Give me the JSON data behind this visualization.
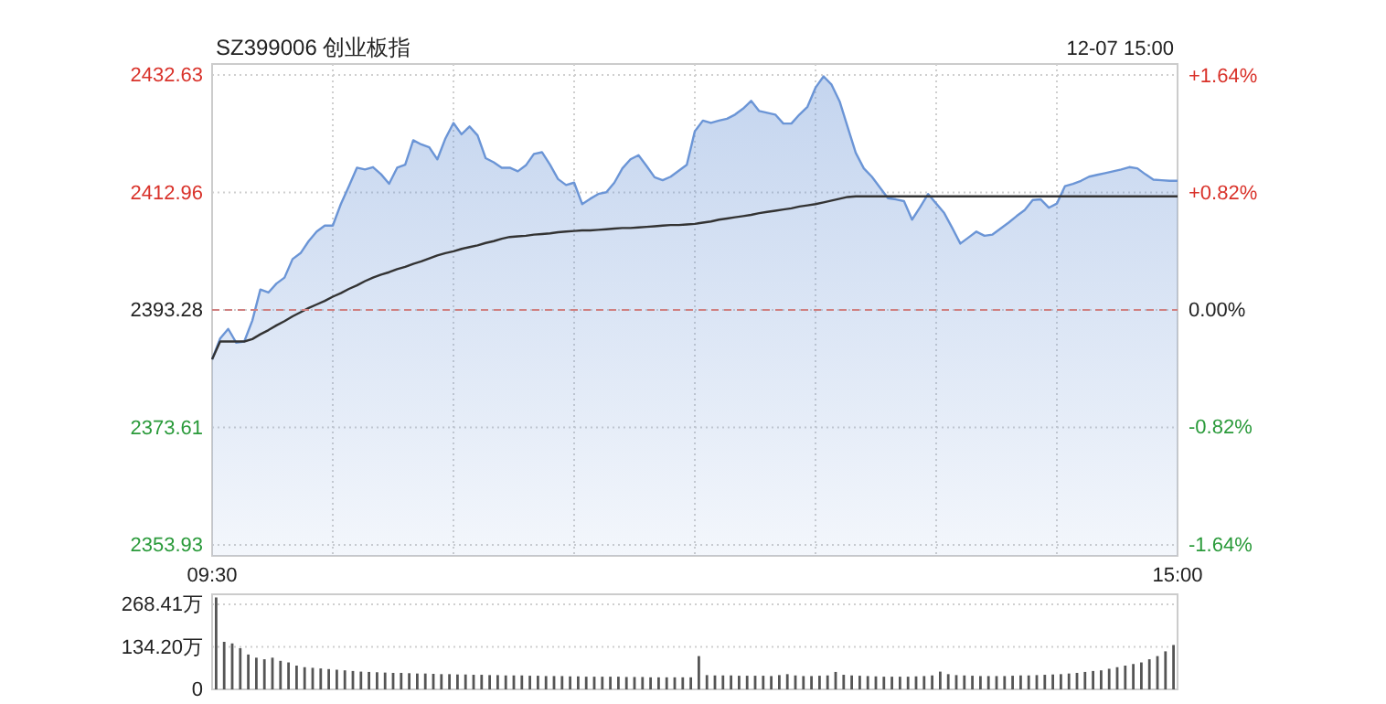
{
  "chart_data": [
    {
      "type": "area",
      "title": "SZ399006 创业板指",
      "annotations": [
        "12-07 15:00"
      ],
      "categories": [
        "09:30",
        null,
        null,
        null,
        null,
        null,
        null,
        null,
        null,
        null,
        null,
        null,
        null,
        null,
        null,
        null,
        null,
        null,
        null,
        null,
        null,
        null,
        null,
        null,
        null,
        null,
        null,
        null,
        null,
        null,
        null,
        null,
        null,
        null,
        null,
        null,
        null,
        null,
        null,
        null,
        null,
        null,
        null,
        null,
        null,
        null,
        null,
        null,
        null,
        null,
        null,
        null,
        null,
        null,
        null,
        null,
        null,
        null,
        null,
        null,
        null,
        null,
        null,
        null,
        null,
        null,
        null,
        null,
        null,
        null,
        null,
        null,
        null,
        null,
        null,
        null,
        null,
        null,
        null,
        null,
        null,
        null,
        null,
        null,
        null,
        null,
        null,
        null,
        null,
        null,
        null,
        null,
        null,
        null,
        null,
        null,
        null,
        null,
        null,
        null,
        null,
        null,
        null,
        null,
        null,
        null,
        null,
        null,
        null,
        null,
        null,
        null,
        null,
        null,
        null,
        null,
        null,
        null,
        null,
        null,
        "15:00"
      ],
      "ylim": [
        2352.09,
        2434.47
      ],
      "yticks": [
        2353.93,
        2373.61,
        2393.28,
        2412.96,
        2432.63
      ],
      "y2lim": [
        -1.72,
        1.72
      ],
      "y2ticks": [
        {
          "value": -1.64,
          "label": "-1.64%"
        },
        {
          "value": -0.82,
          "label": "-0.82%"
        },
        {
          "value": 0,
          "label": "0.00%"
        },
        {
          "value": 0.82,
          "label": "+0.82%"
        },
        {
          "value": 1.64,
          "label": "+1.64%"
        }
      ],
      "grid": true,
      "ref_lines": [
        {
          "axis": "y",
          "value": 2393.28,
          "color": "#d08080",
          "line_style": "dashed"
        }
      ],
      "series": [
        {
          "color": "#6b95d6",
          "values": [
            2385.0,
            2388.5,
            2390.1,
            2387.8,
            2388.0,
            2391.5,
            2396.7,
            2396.2,
            2397.7,
            2398.7,
            2401.8,
            2402.8,
            2404.8,
            2406.4,
            2407.4,
            2407.4,
            2411.0,
            2414.0,
            2417.1,
            2416.8,
            2417.2,
            2416.0,
            2414.4,
            2417.1,
            2417.6,
            2421.7,
            2421.0,
            2420.5,
            2418.5,
            2422.0,
            2424.6,
            2422.7,
            2424.0,
            2422.5,
            2418.7,
            2418.0,
            2417.1,
            2417.1,
            2416.5,
            2417.5,
            2419.4,
            2419.7,
            2417.6,
            2415.2,
            2414.2,
            2414.6,
            2411.0,
            2411.9,
            2412.7,
            2413.0,
            2414.6,
            2417.0,
            2418.5,
            2419.2,
            2417.4,
            2415.5,
            2415.0,
            2415.6,
            2416.6,
            2417.6,
            2423.2,
            2425.0,
            2424.6,
            2425.0,
            2425.3,
            2426.0,
            2427.0,
            2428.3,
            2426.6,
            2426.3,
            2426.0,
            2424.5,
            2424.5,
            2426.0,
            2427.3,
            2430.5,
            2432.4,
            2431.0,
            2428.2,
            2423.9,
            2419.6,
            2417.0,
            2415.6,
            2413.8,
            2412.0,
            2411.8,
            2411.5,
            2408.4,
            2410.5,
            2412.7,
            2411.1,
            2409.5,
            2407.0,
            2404.4,
            2405.4,
            2406.4,
            2405.7,
            2405.9,
            2406.9,
            2407.9,
            2409.0,
            2410.0,
            2411.7,
            2411.8,
            2410.4,
            2411.1,
            2414.0,
            2414.4,
            2414.9,
            2415.6,
            2415.9,
            2416.2,
            2416.5,
            2416.8,
            2417.2,
            2417.0,
            2416.0,
            2415.1,
            2415.0,
            2414.9,
            2414.9
          ]
        },
        {
          "type": "line",
          "color": "#333333",
          "values": [
            2385.0,
            2388.0,
            2388.0,
            2388.0,
            2388.0,
            2388.4,
            2389.2,
            2389.9,
            2390.7,
            2391.4,
            2392.2,
            2392.9,
            2393.6,
            2394.2,
            2394.8,
            2395.5,
            2396.1,
            2396.8,
            2397.4,
            2398.1,
            2398.7,
            2399.2,
            2399.6,
            2400.1,
            2400.5,
            2401.0,
            2401.4,
            2401.9,
            2402.4,
            2402.8,
            2403.1,
            2403.5,
            2403.8,
            2404.1,
            2404.5,
            2404.8,
            2405.2,
            2405.5,
            2405.6,
            2405.7,
            2405.9,
            2406.0,
            2406.1,
            2406.3,
            2406.4,
            2406.5,
            2406.6,
            2406.6,
            2406.7,
            2406.8,
            2406.9,
            2407.0,
            2407.0,
            2407.1,
            2407.2,
            2407.3,
            2407.4,
            2407.5,
            2407.5,
            2407.6,
            2407.7,
            2407.9,
            2408.1,
            2408.4,
            2408.6,
            2408.8,
            2409.0,
            2409.2,
            2409.5,
            2409.7,
            2409.9,
            2410.1,
            2410.3,
            2410.6,
            2410.8,
            2411.0,
            2411.3,
            2411.6,
            2411.9,
            2412.2,
            2412.3,
            2412.3,
            2412.3,
            2412.3,
            2412.3,
            2412.3,
            2412.3,
            2412.3,
            2412.3,
            2412.3,
            2412.3,
            2412.3,
            2412.3,
            2412.3,
            2412.3,
            2412.3,
            2412.3,
            2412.3,
            2412.3,
            2412.3,
            2412.3,
            2412.3,
            2412.3,
            2412.3,
            2412.3,
            2412.3,
            2412.3,
            2412.3,
            2412.3,
            2412.3,
            2412.3,
            2412.3,
            2412.3,
            2412.3,
            2412.3,
            2412.3,
            2412.3,
            2412.3,
            2412.3,
            2412.3,
            2412.3
          ]
        }
      ]
    },
    {
      "type": "bar",
      "color": "#555555",
      "ylim": [
        0,
        300
      ],
      "yticks": [
        {
          "value": 0,
          "label": "0"
        },
        {
          "value": 134.2,
          "label": "134.20万"
        },
        {
          "value": 268.41,
          "label": "268.41万"
        }
      ],
      "tick_labels": "y",
      "grid": "y",
      "categories": [
        null,
        null,
        null,
        null,
        null,
        null,
        null,
        null,
        null,
        null,
        null,
        null,
        null,
        null,
        null,
        null,
        null,
        null,
        null,
        null,
        null,
        null,
        null,
        null,
        null,
        null,
        null,
        null,
        null,
        null,
        null,
        null,
        null,
        null,
        null,
        null,
        null,
        null,
        null,
        null,
        null,
        null,
        null,
        null,
        null,
        null,
        null,
        null,
        null,
        null,
        null,
        null,
        null,
        null,
        null,
        null,
        null,
        null,
        null,
        null,
        null,
        null,
        null,
        null,
        null,
        null,
        null,
        null,
        null,
        null,
        null,
        null,
        null,
        null,
        null,
        null,
        null,
        null,
        null,
        null,
        null,
        null,
        null,
        null,
        null,
        null,
        null,
        null,
        null,
        null,
        null,
        null,
        null,
        null,
        null,
        null,
        null,
        null,
        null,
        null,
        null,
        null,
        null,
        null,
        null,
        null,
        null,
        null,
        null,
        null,
        null,
        null,
        null,
        null,
        null,
        null,
        null,
        null,
        null,
        null
      ],
      "values": [
        290,
        150,
        145,
        130,
        110,
        100,
        95,
        100,
        90,
        85,
        75,
        70,
        68,
        66,
        64,
        62,
        60,
        58,
        56,
        55,
        54,
        53,
        52,
        52,
        51,
        50,
        50,
        49,
        48,
        48,
        47,
        47,
        46,
        46,
        45,
        45,
        44,
        44,
        44,
        43,
        43,
        42,
        42,
        42,
        41,
        41,
        40,
        40,
        40,
        40,
        40,
        39,
        39,
        39,
        38,
        38,
        38,
        38,
        38,
        38,
        105,
        45,
        44,
        44,
        44,
        43,
        43,
        43,
        43,
        42,
        45,
        48,
        44,
        42,
        42,
        43,
        44,
        55,
        46,
        44,
        43,
        42,
        41,
        40,
        40,
        40,
        40,
        41,
        42,
        44,
        56,
        48,
        45,
        44,
        43,
        42,
        42,
        42,
        42,
        43,
        44,
        44,
        45,
        46,
        47,
        48,
        50,
        52,
        55,
        58,
        60,
        65,
        70,
        75,
        80,
        85,
        95,
        105,
        120,
        140
      ]
    }
  ]
}
